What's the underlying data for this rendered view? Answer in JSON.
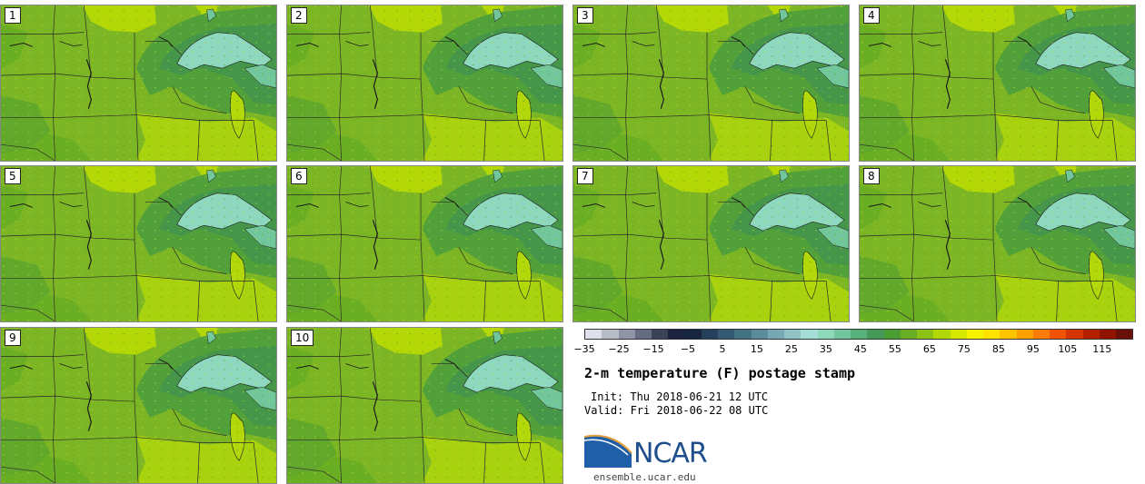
{
  "panels": [
    "1",
    "2",
    "3",
    "4",
    "5",
    "6",
    "7",
    "8",
    "9",
    "10"
  ],
  "colorbar": {
    "colors": [
      "#dde0ea",
      "#b8bcc8",
      "#8f94a6",
      "#666c82",
      "#3a4258",
      "#1a2440",
      "#16243e",
      "#24405a",
      "#335a70",
      "#467286",
      "#5c8c9c",
      "#75a8b2",
      "#8ec4c6",
      "#a4dcd6",
      "#8ed8bc",
      "#72c69c",
      "#58b07a",
      "#449a56",
      "#4a9e32",
      "#6aae24",
      "#8cc218",
      "#b2d80a",
      "#d6e802",
      "#f6f400",
      "#ffe200",
      "#ffc400",
      "#ffa200",
      "#ff7c00",
      "#f05400",
      "#d43400",
      "#b62000",
      "#921400",
      "#6a1008"
    ],
    "tick_labels": [
      "−35",
      "−25",
      "−15",
      "−5",
      "5",
      "15",
      "25",
      "35",
      "45",
      "55",
      "65",
      "75",
      "85",
      "95",
      "105",
      "115"
    ]
  },
  "title": "2-m temperature (F) postage stamp",
  "init": "Init: Thu 2018-06-21 12 UTC",
  "valid": "Valid: Fri 2018-06-22 08 UTC",
  "logo_text": "NCAR",
  "site": "ensemble.ucar.edu"
}
